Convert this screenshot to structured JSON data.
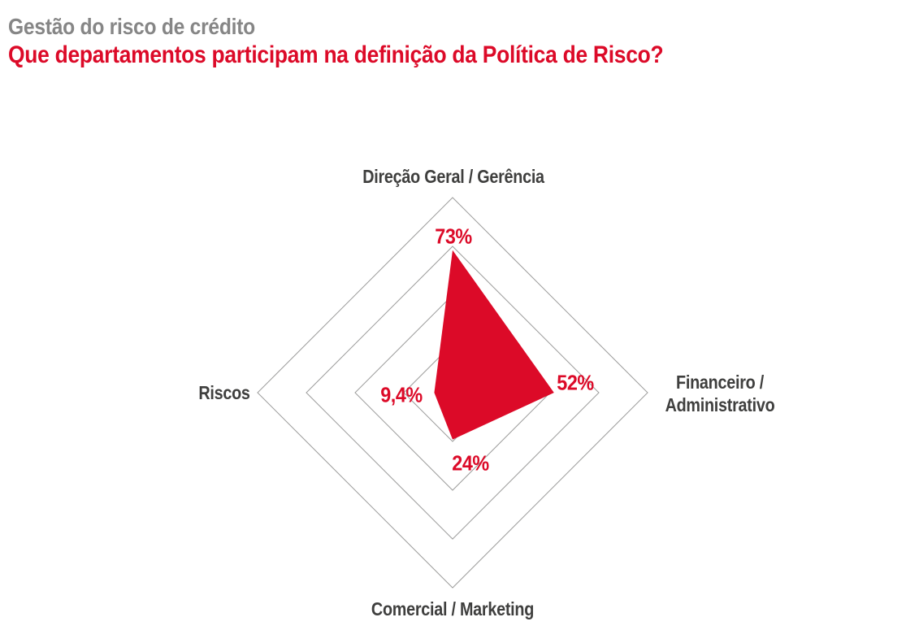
{
  "header": {
    "subtitle": "Gestão do risco de crédito",
    "title": "Que departamentos participam na definição da Política de Risco?"
  },
  "colors": {
    "red": "#DC0A28",
    "subtitle_gray": "#868686",
    "label_gray": "#3F3F3E",
    "grid_gray": "#9D9D9C",
    "background": "#FFFFFF"
  },
  "chart_data": {
    "type": "radar",
    "title": "Que departamentos participam na definição da Política de Risco?",
    "categories": [
      "Direção Geral / Gerência",
      "Financeiro / Administrativo",
      "Comercial / Marketing",
      "Riscos"
    ],
    "values": [
      73,
      52,
      24,
      9.4
    ],
    "value_labels": [
      "73%",
      "52%",
      "24%",
      "9,4%"
    ],
    "max": 100,
    "grid_rings_pct": [
      25,
      50,
      75,
      100
    ],
    "grid_shape": "diamond",
    "grid_on": true,
    "legend": "none",
    "fill_color": "#DC0A28"
  },
  "axis_labels": {
    "top": "Direção Geral / Gerência",
    "right_line1": "Financeiro /",
    "right_line2": "Administrativo",
    "bottom": "Comercial / Marketing",
    "left": "Riscos"
  }
}
